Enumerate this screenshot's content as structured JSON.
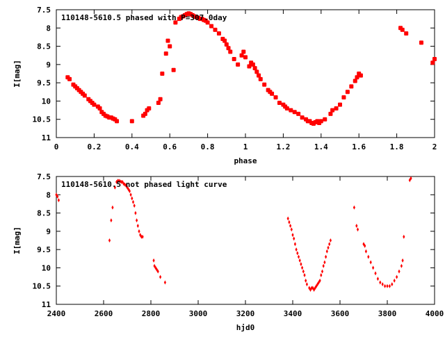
{
  "chart_data": [
    {
      "type": "scatter",
      "title": "110148-5610.5 phased with P=307.0day",
      "xlabel": "phase",
      "ylabel": "I[mag]",
      "xlim": [
        0,
        2
      ],
      "ylim": [
        7.5,
        11
      ],
      "y_inverted": true,
      "x_ticks": [
        "0",
        "0.2",
        "0.4",
        "0.6",
        "0.8",
        "1",
        "1.2",
        "1.4",
        "1.6",
        "1.8",
        "2"
      ],
      "y_ticks": [
        "7.5",
        "8",
        "8.5",
        "9",
        "9.5",
        "10",
        "10.5",
        "11"
      ],
      "grid": false,
      "color": "#ff0000",
      "marker": "filled-square",
      "series": [
        {
          "x": [
            0.06,
            0.07,
            0.09,
            0.1,
            0.11,
            0.12,
            0.13,
            0.14,
            0.15,
            0.17,
            0.18,
            0.19,
            0.2,
            0.22,
            0.23,
            0.24,
            0.25,
            0.26,
            0.27,
            0.28,
            0.29,
            0.3,
            0.31,
            0.32,
            0.4,
            0.46,
            0.47,
            0.48,
            0.49,
            0.54,
            0.55,
            0.56,
            0.58,
            0.59,
            0.6,
            0.62,
            0.63,
            0.65,
            0.66,
            0.67,
            0.68,
            0.69,
            0.7,
            0.71,
            0.72,
            0.73,
            0.74,
            0.75,
            0.76,
            0.77,
            0.78,
            0.79,
            0.8,
            0.82,
            0.84,
            0.86,
            0.88,
            0.89,
            0.9,
            0.91,
            0.92,
            0.94,
            0.96,
            0.98,
            0.99,
            1.0,
            1.02,
            1.03,
            1.04,
            1.05,
            1.06,
            1.07,
            1.08,
            1.1,
            1.12,
            1.13,
            1.14,
            1.16,
            1.18,
            1.2,
            1.21,
            1.22,
            1.24,
            1.26,
            1.28,
            1.3,
            1.32,
            1.33,
            1.34,
            1.35,
            1.36,
            1.37,
            1.38,
            1.39,
            1.4,
            1.42,
            1.45,
            1.46,
            1.48,
            1.5,
            1.52,
            1.54,
            1.56,
            1.58,
            1.59,
            1.6,
            1.61,
            1.82,
            1.83,
            1.85,
            1.93,
            1.99,
            2.0
          ],
          "y": [
            9.35,
            9.4,
            9.55,
            9.6,
            9.65,
            9.7,
            9.75,
            9.8,
            9.85,
            9.95,
            10.0,
            10.05,
            10.1,
            10.15,
            10.2,
            10.3,
            10.35,
            10.4,
            10.42,
            10.45,
            10.45,
            10.48,
            10.5,
            10.55,
            10.55,
            10.4,
            10.35,
            10.25,
            10.2,
            10.05,
            9.95,
            9.25,
            8.7,
            8.35,
            8.5,
            9.15,
            7.85,
            7.75,
            7.7,
            7.68,
            7.65,
            7.62,
            7.6,
            7.62,
            7.65,
            7.68,
            7.7,
            7.72,
            7.75,
            7.75,
            7.78,
            7.8,
            7.85,
            7.95,
            8.05,
            8.15,
            8.3,
            8.35,
            8.45,
            8.55,
            8.65,
            8.85,
            9.0,
            8.75,
            8.65,
            8.8,
            9.05,
            8.95,
            9.0,
            9.1,
            9.2,
            9.3,
            9.4,
            9.55,
            9.7,
            9.75,
            9.8,
            9.9,
            10.05,
            10.1,
            10.15,
            10.2,
            10.25,
            10.3,
            10.35,
            10.45,
            10.5,
            10.55,
            10.55,
            10.6,
            10.62,
            10.58,
            10.55,
            10.6,
            10.55,
            10.5,
            10.35,
            10.25,
            10.2,
            10.1,
            9.9,
            9.75,
            9.6,
            9.45,
            9.35,
            9.25,
            9.3,
            8.0,
            8.05,
            8.15,
            8.4,
            8.95,
            8.85
          ]
        }
      ]
    },
    {
      "type": "scatter",
      "title": "110148-5610.5 not phased light curve",
      "xlabel": "hjd0",
      "ylabel": "I[mag]",
      "xlim": [
        2400,
        4000
      ],
      "ylim": [
        7.5,
        11
      ],
      "y_inverted": true,
      "x_ticks": [
        "2400",
        "2600",
        "2800",
        "3000",
        "3200",
        "3400",
        "3600",
        "3800",
        "4000"
      ],
      "y_ticks": [
        "7.5",
        "8",
        "8.5",
        "9",
        "9.5",
        "10",
        "10.5",
        "11"
      ],
      "grid": false,
      "color": "#ff0000",
      "marker": "diamond",
      "series": [
        {
          "x": [
            2400,
            2405,
            2410,
            2625,
            2632,
            2638,
            2648,
            2655,
            2660,
            2665,
            2670,
            2675,
            2680,
            2685,
            2690,
            2695,
            2700,
            2705,
            2710,
            2715,
            2720,
            2725,
            2730,
            2735,
            2740,
            2745,
            2750,
            2755,
            2760,
            2765,
            2812,
            2815,
            2820,
            2825,
            2830,
            2840,
            2860,
            3380,
            3385,
            3390,
            3395,
            3400,
            3405,
            3410,
            3415,
            3420,
            3425,
            3430,
            3435,
            3440,
            3445,
            3450,
            3455,
            3460,
            3470,
            3475,
            3480,
            3485,
            3490,
            3495,
            3500,
            3505,
            3510,
            3515,
            3520,
            3525,
            3530,
            3535,
            3540,
            3545,
            3550,
            3555,
            3560,
            3660,
            3670,
            3675,
            3700,
            3705,
            3710,
            3720,
            3730,
            3740,
            3750,
            3760,
            3770,
            3780,
            3790,
            3800,
            3810,
            3820,
            3830,
            3840,
            3850,
            3860,
            3865,
            3870,
            3895,
            3900
          ],
          "y": [
            8.0,
            8.05,
            8.15,
            9.25,
            8.7,
            8.35,
            7.8,
            7.65,
            7.62,
            7.62,
            7.63,
            7.65,
            7.65,
            7.7,
            7.72,
            7.75,
            7.8,
            7.85,
            7.9,
            8.0,
            8.1,
            8.2,
            8.3,
            8.5,
            8.7,
            8.85,
            9.0,
            9.1,
            9.15,
            9.15,
            9.8,
            9.95,
            10.0,
            10.05,
            10.1,
            10.25,
            10.4,
            8.65,
            8.75,
            8.85,
            8.95,
            9.1,
            9.2,
            9.35,
            9.5,
            9.6,
            9.7,
            9.8,
            9.9,
            10.0,
            10.1,
            10.2,
            10.35,
            10.45,
            10.55,
            10.6,
            10.55,
            10.55,
            10.6,
            10.55,
            10.5,
            10.45,
            10.4,
            10.35,
            10.2,
            10.1,
            9.95,
            9.85,
            9.7,
            9.55,
            9.45,
            9.35,
            9.25,
            8.35,
            8.85,
            8.95,
            9.35,
            9.4,
            9.55,
            9.7,
            9.85,
            10.0,
            10.15,
            10.3,
            10.4,
            10.45,
            10.5,
            10.5,
            10.5,
            10.45,
            10.35,
            10.25,
            10.1,
            9.95,
            9.8,
            9.15,
            7.6,
            7.55
          ]
        }
      ]
    }
  ]
}
